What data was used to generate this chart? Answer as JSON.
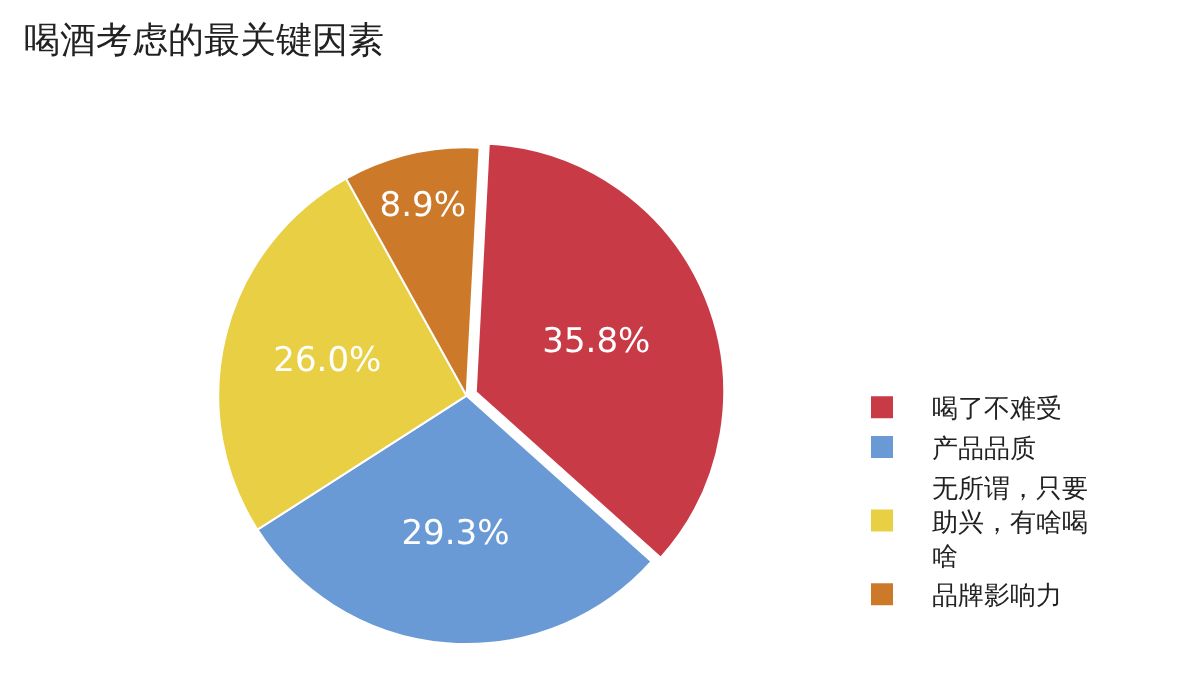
{
  "chart_data": {
    "type": "pie",
    "title": "喝酒考虑的最关键因素",
    "categories": [
      "喝了不难受",
      "产品品质",
      "无所谓，只要助兴，有啥喝啥",
      "品牌影响力"
    ],
    "values": [
      35.8,
      29.3,
      26.0,
      8.9
    ],
    "value_labels": [
      "35.8%",
      "29.3%",
      "26.0%",
      "8.9%"
    ],
    "colors": [
      "#c93a47",
      "#6a9ad6",
      "#e8cf44",
      "#cc7a2a"
    ],
    "legend": "right"
  }
}
